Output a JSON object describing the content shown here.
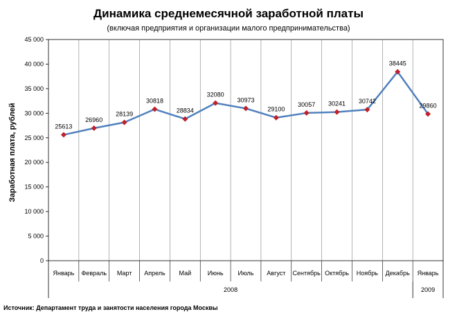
{
  "chart_data": {
    "type": "line",
    "title": "Динамика среднемесячной заработной платы",
    "subtitle": "(включая предприятия и организации малого предпринимательства)",
    "ylabel": "Заработная плата, рублей",
    "categories": [
      "Январь",
      "Февраль",
      "Март",
      "Апрель",
      "Май",
      "Июнь",
      "Июль",
      "Август",
      "Сентябрь",
      "Октябрь",
      "Ноябрь",
      "Декабрь",
      "Январь"
    ],
    "year_groups": [
      {
        "label": "2008",
        "from": 0,
        "to": 11
      },
      {
        "label": "2009",
        "from": 12,
        "to": 12
      }
    ],
    "series": [
      {
        "values": [
          25613,
          26960,
          28139,
          30818,
          28834,
          32080,
          30973,
          29100,
          30057,
          30241,
          30742,
          38445,
          29860
        ],
        "line_color": "#4f81bd",
        "marker_color": "#c0202a"
      }
    ],
    "y_ticks": [
      "0",
      "5 000",
      "10 000",
      "15 000",
      "20 000",
      "25 000",
      "30 000",
      "35 000",
      "40 000",
      "45 000"
    ],
    "ylim": [
      0,
      45000
    ],
    "grid": "vertical",
    "source": "Источник: Департамент труда и занятости населения города Москвы"
  }
}
